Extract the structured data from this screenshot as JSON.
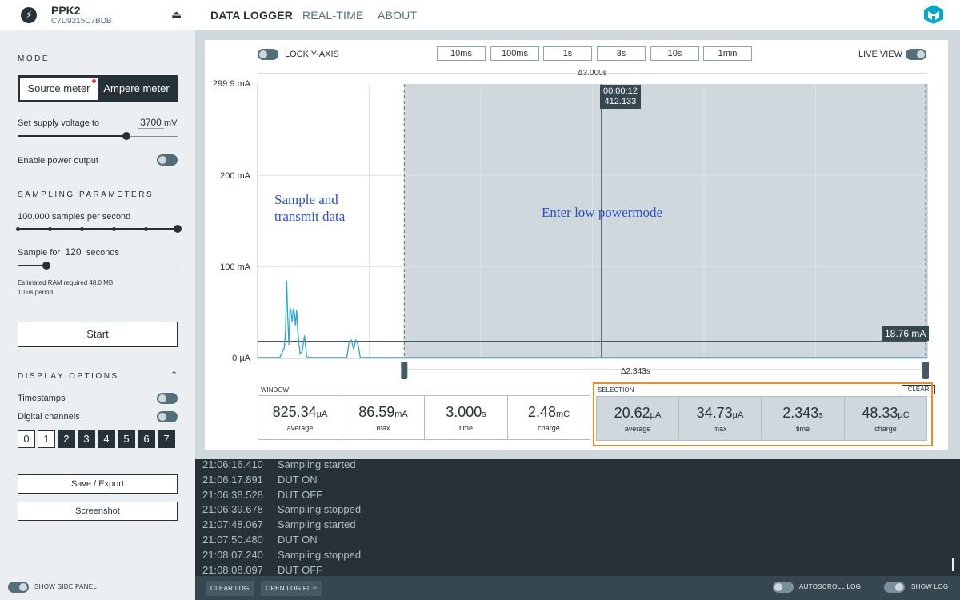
{
  "topbar": {
    "device_name": "PPK2",
    "device_serial": "C7D9215C7BDB",
    "nav": [
      "DATA LOGGER",
      "REAL-TIME",
      "ABOUT"
    ],
    "active_nav": "DATA LOGGER"
  },
  "sidebar": {
    "mode_heading": "MODE",
    "mode_options": [
      "Source meter",
      "Ampere meter"
    ],
    "supply_label": "Set supply voltage to",
    "supply_value": "3700",
    "supply_unit": "mV",
    "supply_slider_fraction": 0.68,
    "power_output_label": "Enable power output",
    "sampling_heading": "SAMPLING PARAMETERS",
    "sample_rate_label": "100,000 samples per second",
    "sample_rate_steps": 6,
    "sample_rate_selected_index": 5,
    "sample_for_prefix": "Sample for",
    "sample_for_value": "120",
    "sample_for_suffix": "seconds",
    "sample_for_slider_fraction": 0.18,
    "ram_info": "Estimated RAM required 48.0 MB",
    "period_info": "10 us period",
    "start_label": "Start",
    "display_heading": "DISPLAY OPTIONS",
    "timestamps_label": "Timestamps",
    "digital_label": "Digital channels",
    "digital_channels": [
      "0",
      "1",
      "2",
      "3",
      "4",
      "5",
      "6",
      "7"
    ],
    "save_label": "Save / Export",
    "screenshot_label": "Screenshot"
  },
  "chart_controls": {
    "lock_y_label": "LOCK Y-AXIS",
    "ranges": [
      "10ms",
      "100ms",
      "1s",
      "3s",
      "10s",
      "1min"
    ],
    "live_view_label": "LIVE VIEW",
    "window_delta": "Δ3.000s",
    "selection_delta": "Δ2.343s"
  },
  "chart_data": {
    "type": "line",
    "ylabel": "",
    "y_ticks": [
      "299.9 mA",
      "200 mA",
      "100 mA",
      "0 µA"
    ],
    "ylim": [
      0,
      299.9
    ],
    "xlim": [
      0,
      3.0
    ],
    "selection_range_s": [
      0.657,
      3.0
    ],
    "cursor_label_time": "00:00:12",
    "cursor_label_value": "412.133",
    "cursor_x_s": 1.54,
    "average_level_label": "18.76 mA",
    "average_level_ma": 18.76,
    "series": [
      {
        "x": [
          0,
          0.1,
          0.12,
          0.125,
          0.13,
          0.135,
          0.14,
          0.145,
          0.15,
          0.155,
          0.16,
          0.165,
          0.17,
          0.175,
          0.18,
          0.19,
          0.2,
          0.21,
          0.22,
          0.23,
          0.3,
          0.4,
          0.41,
          0.42,
          0.43,
          0.44,
          0.45,
          0.46,
          0.5,
          0.6,
          0.657,
          1.0,
          2.0,
          3.0
        ],
        "y": [
          1,
          1,
          12,
          30,
          85,
          45,
          15,
          55,
          52,
          40,
          54,
          50,
          36,
          53,
          30,
          5,
          8,
          25,
          2,
          1,
          1,
          1,
          18,
          20,
          10,
          20,
          15,
          1,
          1,
          1,
          1,
          1,
          1,
          1
        ]
      }
    ],
    "annotations": [
      "Sample and",
      "transmit data",
      "Enter low powermode"
    ]
  },
  "window_stats": {
    "label": "WINDOW",
    "items": [
      {
        "value": "825.34",
        "unit": "µA",
        "label": "average"
      },
      {
        "value": "86.59",
        "unit": "mA",
        "label": "max"
      },
      {
        "value": "3.000",
        "unit": "s",
        "label": "time"
      },
      {
        "value": "2.48",
        "unit": "mC",
        "label": "charge"
      }
    ]
  },
  "selection_stats": {
    "label": "SELECTION",
    "clear_label": "CLEAR",
    "items": [
      {
        "value": "20.62",
        "unit": "µA",
        "label": "average"
      },
      {
        "value": "34.73",
        "unit": "µA",
        "label": "max"
      },
      {
        "value": "2.343",
        "unit": "s",
        "label": "time"
      },
      {
        "value": "48.33",
        "unit": "µC",
        "label": "charge"
      }
    ]
  },
  "log": [
    {
      "time": "21:06:16.410",
      "msg": "Sampling started"
    },
    {
      "time": "21:06:17.891",
      "msg": "DUT ON"
    },
    {
      "time": "21:06:38.528",
      "msg": "DUT OFF"
    },
    {
      "time": "21:06:39.678",
      "msg": "Sampling stopped"
    },
    {
      "time": "21:07:48.067",
      "msg": "Sampling started"
    },
    {
      "time": "21:07:50.480",
      "msg": "DUT ON"
    },
    {
      "time": "21:08:07.240",
      "msg": "Sampling stopped"
    },
    {
      "time": "21:08:08.097",
      "msg": "DUT OFF"
    }
  ],
  "bottombar": {
    "show_side_panel": "SHOW SIDE PANEL",
    "clear_log": "CLEAR LOG",
    "open_log_file": "OPEN LOG FILE",
    "autoscroll_log": "AUTOSCROLL LOG",
    "show_log": "SHOW LOG"
  },
  "colors": {
    "accent": "#263238",
    "trace": "#2ba6c9",
    "selection_fill": "#cfd8dc",
    "highlight": "#f08b25",
    "annotation": "#2a4fc7"
  }
}
